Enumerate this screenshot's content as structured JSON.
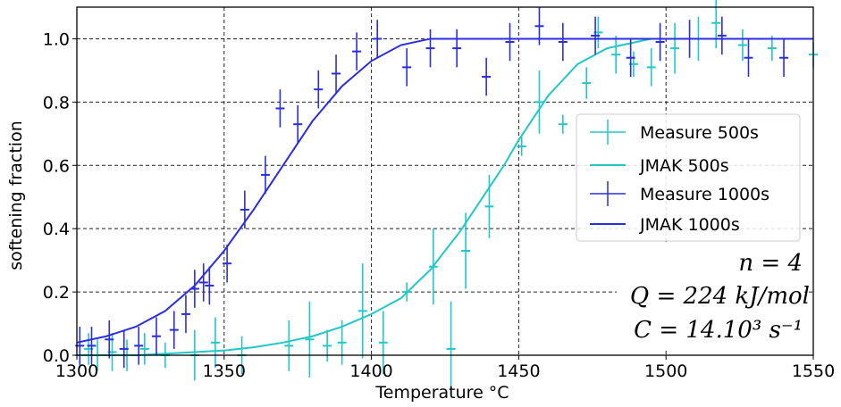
{
  "chart_data": {
    "type": "scatter",
    "title": "",
    "xlabel": "Temperature °C",
    "ylabel": "softening fraction",
    "xlim": [
      1300,
      1550
    ],
    "ylim": [
      0.0,
      1.1
    ],
    "xticks": [
      1300,
      1350,
      1400,
      1450,
      1500,
      1550
    ],
    "xtick_labels": [
      "1300",
      "1350",
      "1400",
      "1450",
      "1500",
      "1550"
    ],
    "yticks": [
      0.0,
      0.2,
      0.4,
      0.6,
      0.8,
      1.0
    ],
    "ytick_labels": [
      "0.0",
      "0.2",
      "0.4",
      "0.6",
      "0.8",
      "1.0"
    ],
    "grid": true,
    "legend_position": "center-right",
    "series": [
      {
        "name": "Measure 500s",
        "kind": "errorbar",
        "color": "#22c7c7",
        "x": [
          1301,
          1304,
          1307,
          1312,
          1317,
          1323,
          1330,
          1340,
          1347,
          1356,
          1372,
          1379,
          1385,
          1390,
          1397,
          1404,
          1412,
          1421,
          1427,
          1432,
          1440,
          1451,
          1457,
          1465,
          1473,
          1477,
          1483,
          1489,
          1495,
          1503,
          1511,
          1517,
          1526,
          1536,
          1550
        ],
        "y": [
          0.0,
          0.02,
          0.0,
          0.01,
          0.0,
          0.02,
          0.0,
          0.0,
          0.04,
          0.0,
          0.03,
          0.05,
          0.03,
          0.04,
          0.14,
          0.04,
          0.2,
          0.28,
          0.02,
          0.33,
          0.47,
          0.66,
          0.8,
          0.73,
          0.86,
          1.02,
          0.95,
          0.92,
          0.91,
          0.97,
          1.0,
          1.05,
          0.98,
          0.97,
          0.95
        ],
        "err": [
          0.04,
          0.05,
          0.05,
          0.06,
          0.05,
          0.05,
          0.04,
          0.08,
          0.08,
          0.06,
          0.08,
          0.12,
          0.05,
          0.07,
          0.15,
          0.1,
          0.03,
          0.12,
          0.15,
          0.12,
          0.1,
          0.03,
          0.1,
          0.03,
          0.05,
          0.05,
          0.06,
          0.04,
          0.06,
          0.08,
          0.07,
          0.08,
          0.05,
          0.04,
          0.04
        ]
      },
      {
        "name": "JMAK 500s",
        "kind": "line",
        "color": "#22c7c7",
        "x": [
          1300,
          1320,
          1340,
          1350,
          1360,
          1370,
          1380,
          1390,
          1400,
          1410,
          1420,
          1430,
          1440,
          1445,
          1450,
          1460,
          1470,
          1480,
          1490,
          1495,
          1500,
          1550
        ],
        "y": [
          0.0,
          0.0,
          0.01,
          0.015,
          0.025,
          0.04,
          0.06,
          0.09,
          0.13,
          0.18,
          0.27,
          0.39,
          0.53,
          0.6,
          0.68,
          0.82,
          0.92,
          0.97,
          0.99,
          1.0,
          1.0,
          1.0
        ]
      },
      {
        "name": "Measure 1000s",
        "kind": "errorbar",
        "color": "#2b2ee0",
        "x": [
          1301,
          1305,
          1311,
          1316,
          1321,
          1327,
          1333,
          1337,
          1340,
          1343,
          1345,
          1351,
          1357,
          1364,
          1369,
          1375,
          1382,
          1388,
          1395,
          1402,
          1412,
          1420,
          1429,
          1439,
          1447,
          1457,
          1465,
          1476,
          1488,
          1498,
          1508,
          1519,
          1528,
          1540
        ],
        "y": [
          0.03,
          0.03,
          0.05,
          0.02,
          0.03,
          0.06,
          0.08,
          0.13,
          0.21,
          0.23,
          0.22,
          0.29,
          0.46,
          0.57,
          0.78,
          0.73,
          0.84,
          0.89,
          0.96,
          1.0,
          0.91,
          0.97,
          0.97,
          0.88,
          0.99,
          1.04,
          0.99,
          1.01,
          0.94,
          0.99,
          1.0,
          1.01,
          0.94,
          0.94
        ]
      },
      {
        "name": "JMAK 1000s",
        "kind": "line",
        "color": "#2b2ee0",
        "x": [
          1300,
          1310,
          1320,
          1330,
          1340,
          1350,
          1360,
          1370,
          1380,
          1390,
          1400,
          1410,
          1420,
          1430,
          1500,
          1550
        ],
        "y": [
          0.04,
          0.06,
          0.09,
          0.14,
          0.22,
          0.33,
          0.46,
          0.6,
          0.74,
          0.85,
          0.93,
          0.98,
          1.0,
          1.0,
          1.0,
          1.0
        ]
      }
    ],
    "annotations": [
      "n = 4",
      "Q = 224 kJ/mol",
      "C = 14.10³ s⁻¹"
    ]
  }
}
